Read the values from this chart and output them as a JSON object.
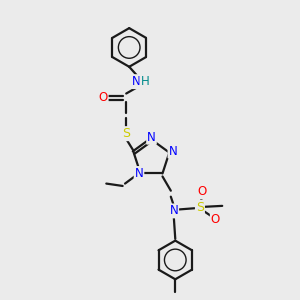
{
  "background_color": "#ebebeb",
  "bond_color": "#1a1a1a",
  "atom_colors": {
    "N": "#0000ff",
    "O": "#ff0000",
    "S": "#cccc00",
    "H": "#008b8b",
    "C": "#1a1a1a"
  },
  "figsize": [
    3.0,
    3.0
  ],
  "dpi": 100
}
